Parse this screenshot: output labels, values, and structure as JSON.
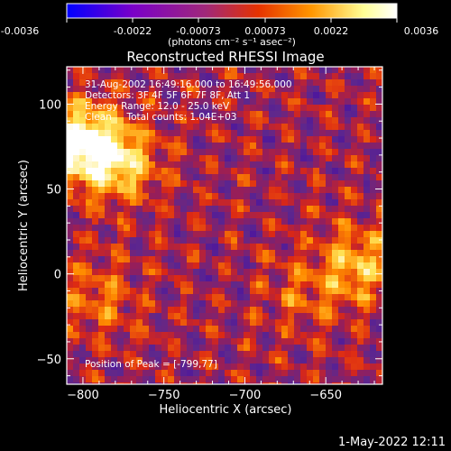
{
  "chart_data": {
    "type": "heatmap",
    "title": "Reconstructed RHESSI Image",
    "xlabel": "Heliocentric X (arcsec)",
    "ylabel": "Heliocentric Y (arcsec)",
    "xlim": [
      -810,
      -615
    ],
    "ylim": [
      -65,
      122
    ],
    "xticks": [
      -800,
      -750,
      -700,
      -650
    ],
    "yticks": [
      -50,
      0,
      50,
      100
    ],
    "grid": false,
    "colorbar": {
      "position": "top",
      "range": [
        -0.0036,
        0.0036
      ],
      "ticks": [
        "-0.0036",
        "-0.0022",
        "-0.00073",
        "0.00073",
        "0.0022",
        "0.0036"
      ],
      "unit_label": "(photons cm⁻² s⁻¹ asec⁻²)",
      "colors": [
        "#0000ff",
        "#7a00c8",
        "#a0287a",
        "#e63200",
        "#ff9600",
        "#ffff96",
        "#ffffff"
      ]
    },
    "annotations": [
      "31-Aug-2002 16:49:16.000 to 16:49:56.000",
      "Detectors: 3F 4F 5F 6F 7F 8F, Att 1",
      "Energy Range: 12.0 - 25.0 keV",
      "Clean     Total counts: 1.04E+03",
      "Position of Peak = [-799,77]"
    ],
    "peak": {
      "x": -799,
      "y": 77
    },
    "bright_sources": [
      {
        "x": -800,
        "y": 77,
        "value": 0.0036
      },
      {
        "x": -775,
        "y": 65,
        "value": 0.0022
      },
      {
        "x": -630,
        "y": 5,
        "value": 0.002
      },
      {
        "x": -790,
        "y": -15,
        "value": 0.0012
      },
      {
        "x": -665,
        "y": -10,
        "value": 0.001
      }
    ],
    "timestamp": "1-May-2022 12:11"
  }
}
